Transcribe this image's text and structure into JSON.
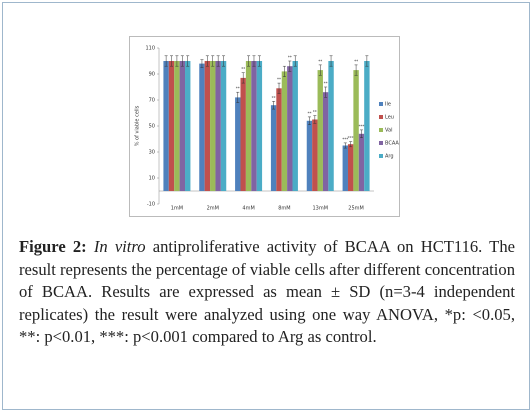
{
  "chart_data": {
    "type": "bar",
    "ylabel": "% of viable cells",
    "categories": [
      "1mM",
      "2mM",
      "4mM",
      "8mM",
      "13mM",
      "25mM"
    ],
    "ylim": [
      -10,
      110
    ],
    "yticks": [
      -10,
      10,
      30,
      50,
      70,
      90,
      110
    ],
    "legend": "right",
    "series": [
      {
        "name": "Ile",
        "color": "#4f81bd",
        "values": [
          100,
          98,
          72,
          66,
          54,
          35
        ],
        "errors": [
          4,
          3,
          4,
          3,
          3,
          2
        ],
        "stars": [
          null,
          null,
          "**",
          "**",
          "**",
          "***"
        ]
      },
      {
        "name": "Leu",
        "color": "#c0504d",
        "values": [
          100,
          100,
          87,
          79,
          55,
          36
        ],
        "errors": [
          4,
          4,
          4,
          4,
          3,
          2
        ],
        "stars": [
          null,
          null,
          "**",
          "**",
          "**",
          "***"
        ]
      },
      {
        "name": "Val",
        "color": "#9bbb59",
        "values": [
          100,
          100,
          100,
          92,
          93,
          93
        ],
        "errors": [
          4,
          4,
          4,
          4,
          4,
          4
        ],
        "stars": [
          null,
          null,
          null,
          null,
          "**",
          "**"
        ]
      },
      {
        "name": "BCAA",
        "color": "#8064a2",
        "values": [
          100,
          100,
          100,
          96,
          76,
          44
        ],
        "errors": [
          4,
          4,
          4,
          4,
          4,
          3
        ],
        "stars": [
          null,
          null,
          null,
          "**",
          "**",
          "***"
        ]
      },
      {
        "name": "Arg",
        "color": "#4bacc6",
        "values": [
          100,
          100,
          100,
          100,
          100,
          100
        ],
        "errors": [
          4,
          4,
          4,
          4,
          4,
          4
        ],
        "stars": [
          null,
          null,
          null,
          null,
          null,
          null
        ]
      }
    ]
  },
  "caption": {
    "label": "Figure 2:",
    "italic": "In vitro",
    "text": "antiproliferative activity of BCAA on HCT116. The result represents the percentage of viable cells after different concentration of BCAA. Results are expressed as mean ± SD (n=3-4 independent replicates) the result were analyzed using one way ANOVA, *p: <0.05, **: p<0.01, ***: p<0.001 compared to Arg as control."
  }
}
